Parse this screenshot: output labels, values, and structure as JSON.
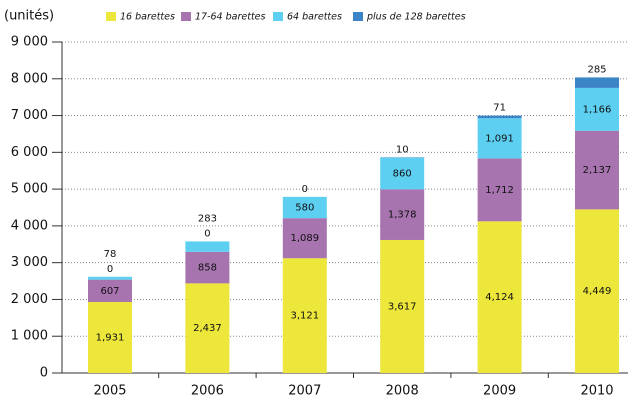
{
  "chart_data": {
    "type": "stacked_bar",
    "y_label": "(unités)",
    "categories": [
      "2005",
      "2006",
      "2007",
      "2008",
      "2009",
      "2010"
    ],
    "series": [
      {
        "name": "16 barettes",
        "color": "#ece73a",
        "values": [
          1931,
          2437,
          3121,
          3617,
          4124,
          4449
        ],
        "value_labels": [
          "1,931",
          "2,437",
          "3,121",
          "3,617",
          "4,124",
          "4,449"
        ]
      },
      {
        "name": "17-64 barettes",
        "color": "#a774b0",
        "values": [
          607,
          858,
          1089,
          1378,
          1712,
          2137
        ],
        "value_labels": [
          "607",
          "858",
          "1,089",
          "1,378",
          "1,712",
          "2,137"
        ]
      },
      {
        "name": "64 barettes",
        "color": "#5dd0f2",
        "values": [
          78,
          283,
          580,
          860,
          1091,
          1166
        ],
        "value_labels": [
          "78",
          "283",
          "580",
          "860",
          "1,091",
          "1,166"
        ]
      },
      {
        "name": "plus de 128 barettes",
        "color": "#3b84c6",
        "values": [
          0,
          0,
          0,
          10,
          71,
          285
        ],
        "value_labels": [
          "0",
          "0",
          "0",
          "10",
          "71",
          "285"
        ]
      }
    ],
    "ylim": [
      0,
      9000
    ],
    "yticks": [
      0,
      {
        "value": 1000,
        "label": "1 000"
      },
      {
        "value": 2000,
        "label": "2 000"
      },
      {
        "value": 3000,
        "label": "3 000"
      },
      {
        "value": 4000,
        "label": "4 000"
      },
      {
        "value": 5000,
        "label": "5 000"
      },
      {
        "value": 6000,
        "label": "6 000"
      },
      {
        "value": 7000,
        "label": "7 000"
      },
      {
        "value": 8000,
        "label": "8 000"
      },
      {
        "value": 9000,
        "label": "9 000"
      }
    ],
    "grid": true
  }
}
